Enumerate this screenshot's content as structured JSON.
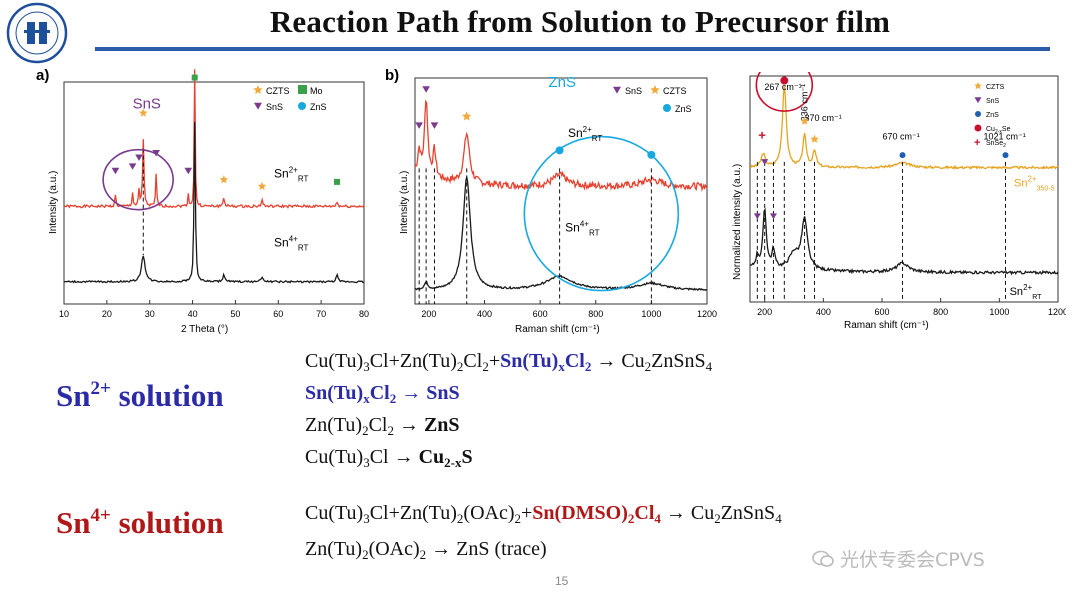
{
  "title": "Reaction Path from Solution to Precursor film",
  "page_number": "15",
  "watermark": "光伏专委会CPVS",
  "panel_a": {
    "label": "a)",
    "legend": [
      "CZTS",
      "Mo",
      "SnS",
      "ZnS"
    ],
    "annotation": "SnS",
    "trace_labels": {
      "top": "Sn",
      "top_sup": "2+",
      "top_sub": "RT",
      "bottom": "Sn",
      "bottom_sup": "4+",
      "bottom_sub": "RT"
    },
    "colors": {
      "top": "#e8412f",
      "bottom": "#1a1a1a",
      "czts": "#f2a93b",
      "mo": "#3aa14a",
      "sns": "#7b3a8e",
      "zns": "#18a8e0"
    }
  },
  "panel_b": {
    "label": "b)",
    "legend": [
      "SnS",
      "CZTS",
      "ZnS"
    ],
    "annotation": "ZnS",
    "trace_labels": {
      "top": "Sn",
      "top_sup": "2+",
      "top_sub": "RT",
      "bottom": "Sn",
      "bottom_sup": "4+",
      "bottom_sub": "RT"
    }
  },
  "panel_c": {
    "annotation": "Cu",
    "annotation_sub": "2-x",
    "annotation_tail": "Se",
    "peak_labels": [
      "267 cm⁻¹",
      "336 cm⁻¹",
      "370 cm⁻¹",
      "670 cm⁻¹",
      "1021 cm⁻¹"
    ],
    "legend": [
      "CZTS",
      "SnS",
      "ZnS",
      "Cu",
      "SnSe"
    ],
    "legend_subs": [
      "",
      "",
      "",
      "2-x",
      "2"
    ],
    "legend_tails": [
      "",
      "",
      "",
      "Se",
      ""
    ],
    "trace_labels": {
      "top": "Sn",
      "top_sup": "2+",
      "top_sub": "350-5",
      "bottom": "Sn",
      "bottom_sup": "2+",
      "bottom_sub": "RT"
    },
    "colors": {
      "top": "#e7a320",
      "bottom": "#1a1a1a",
      "cuse": "#c8102e",
      "snse": "#c8102e"
    }
  },
  "chart_data": [
    {
      "type": "line",
      "title": "",
      "xlabel": "2 Theta (°)",
      "ylabel": "Intensity (a.u.)",
      "xlim": [
        10,
        80
      ],
      "xticks": [
        "10",
        "20",
        "30",
        "40",
        "50",
        "60",
        "70",
        "80"
      ],
      "peaks_marked": {
        "CZTS": [
          28.5,
          47.3,
          56.2
        ],
        "Mo": [
          40.5,
          73.7
        ],
        "SnS": [
          22.0,
          26.0,
          27.5,
          31.5,
          39.0
        ]
      },
      "series": [
        {
          "name": "Sn2+ RT",
          "x": [
            10,
            20,
            22,
            26,
            27.5,
            28.5,
            31.5,
            39,
            40.5,
            47.3,
            56.2,
            73.7,
            80
          ],
          "y": [
            0.42,
            0.44,
            0.52,
            0.55,
            0.6,
            0.78,
            0.62,
            0.5,
            1.0,
            0.49,
            0.47,
            0.45,
            0.44
          ]
        },
        {
          "name": "Sn4+ RT",
          "x": [
            10,
            20,
            28.5,
            35,
            40.5,
            47.3,
            56.2,
            73.7,
            80
          ],
          "y": [
            0.1,
            0.11,
            0.24,
            0.12,
            0.84,
            0.14,
            0.11,
            0.13,
            0.1
          ]
        }
      ]
    },
    {
      "type": "line",
      "title": "",
      "xlabel": "Raman shift (cm⁻¹)",
      "ylabel": "Intensity (a.u.)",
      "xlim": [
        150,
        1200
      ],
      "xticks": [
        "200",
        "400",
        "600",
        "800",
        "1000",
        "1200"
      ],
      "series": [
        {
          "name": "Sn2+ RT",
          "x": [
            150,
            165,
            190,
            220,
            260,
            336,
            400,
            500,
            600,
            670,
            800,
            1000,
            1200
          ],
          "y": [
            0.62,
            0.72,
            0.92,
            0.66,
            0.56,
            0.78,
            0.56,
            0.5,
            0.52,
            0.58,
            0.56,
            0.57,
            0.55
          ]
        },
        {
          "name": "Sn4+ RT",
          "x": [
            150,
            190,
            260,
            336,
            400,
            500,
            600,
            670,
            800,
            1000,
            1200
          ],
          "y": [
            0.06,
            0.08,
            0.14,
            0.58,
            0.18,
            0.08,
            0.1,
            0.15,
            0.09,
            0.1,
            0.07
          ]
        }
      ]
    },
    {
      "type": "line",
      "title": "",
      "xlabel": "Raman shift (cm⁻¹)",
      "ylabel": "Normalized intensity (a.u.)",
      "xlim": [
        150,
        1200
      ],
      "xticks": [
        "200",
        "400",
        "600",
        "800",
        "1000",
        "1200"
      ],
      "series": [
        {
          "name": "Sn2+ 350-5",
          "x": [
            150,
            200,
            250,
            267,
            300,
            336,
            370,
            400,
            600,
            670,
            800,
            1021,
            1200
          ],
          "y": [
            0.6,
            0.66,
            0.6,
            0.96,
            0.62,
            0.74,
            0.66,
            0.6,
            0.59,
            0.61,
            0.59,
            0.6,
            0.59
          ]
        },
        {
          "name": "Sn2+ RT",
          "x": [
            150,
            175,
            200,
            230,
            267,
            300,
            336,
            370,
            400,
            600,
            670,
            800,
            1021,
            1200
          ],
          "y": [
            0.14,
            0.22,
            0.42,
            0.24,
            0.22,
            0.3,
            0.4,
            0.26,
            0.18,
            0.14,
            0.18,
            0.13,
            0.14,
            0.12
          ]
        }
      ]
    }
  ],
  "sn2_solution": {
    "label": "Sn",
    "sup": "2+",
    "tail": " solution",
    "color": "#2b2ba8"
  },
  "sn4_solution": {
    "label": "Sn",
    "sup": "4+",
    "tail": " solution",
    "color": "#b01818"
  }
}
